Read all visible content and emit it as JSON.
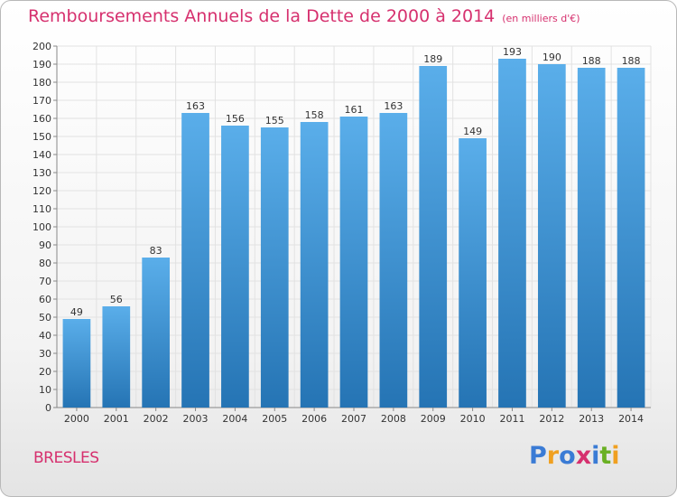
{
  "title": "Remboursements Annuels de la Dette de 2000 à 2014",
  "unit_note": "(en milliers d'€)",
  "commune": "BRESLES",
  "logo": {
    "text": "Proxiti",
    "letters": [
      {
        "ch": "P",
        "color": "#3a7bd5"
      },
      {
        "ch": "r",
        "color": "#f0a020"
      },
      {
        "ch": "o",
        "color": "#3a7bd5"
      },
      {
        "ch": "x",
        "color": "#d6306e"
      },
      {
        "ch": "i",
        "color": "#3a7bd5"
      },
      {
        "ch": "t",
        "color": "#6ab023"
      },
      {
        "ch": "i",
        "color": "#f0a020"
      }
    ]
  },
  "colors": {
    "title": "#d6306e",
    "bar_top": "#5aaeea",
    "bar_bottom": "#2574b4",
    "grid": "#e2e2e2"
  },
  "chart_data": {
    "type": "bar",
    "title": "Remboursements Annuels de la Dette de 2000 à 2014",
    "xlabel": "",
    "ylabel": "",
    "categories": [
      "2000",
      "2001",
      "2002",
      "2003",
      "2004",
      "2005",
      "2006",
      "2007",
      "2008",
      "2009",
      "2010",
      "2011",
      "2012",
      "2013",
      "2014"
    ],
    "values": [
      49,
      56,
      83,
      163,
      156,
      155,
      158,
      161,
      163,
      189,
      149,
      193,
      190,
      188,
      188
    ],
    "ylim": [
      0,
      200
    ],
    "yticks": [
      0,
      10,
      20,
      30,
      40,
      50,
      60,
      70,
      80,
      90,
      100,
      110,
      120,
      130,
      140,
      150,
      160,
      170,
      180,
      190,
      200
    ],
    "grid": true,
    "data_labels": true
  }
}
